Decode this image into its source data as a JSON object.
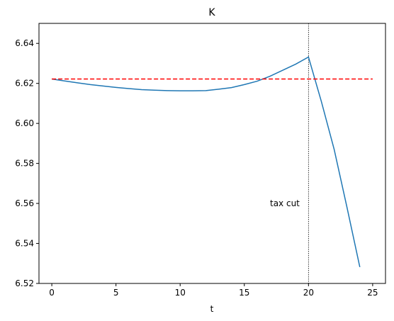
{
  "chart_data": {
    "type": "line",
    "title": "K",
    "xlabel": "t",
    "ylabel": "",
    "xlim": [
      -1,
      26
    ],
    "ylim": [
      6.52,
      6.65
    ],
    "xticks": [
      0,
      5,
      10,
      15,
      20,
      25
    ],
    "yticks": [
      6.52,
      6.54,
      6.56,
      6.58,
      6.6,
      6.62,
      6.64
    ],
    "ytick_labels": [
      "6.52",
      "6.54",
      "6.56",
      "6.58",
      "6.60",
      "6.62",
      "6.64"
    ],
    "grid": false,
    "series": [
      {
        "color": "#1f77b4",
        "style": "solid",
        "x": [
          0,
          1,
          2,
          3,
          4,
          5,
          6,
          7,
          8,
          9,
          10,
          11,
          12,
          13,
          14,
          15,
          16,
          17,
          18,
          19,
          20,
          21,
          22,
          23,
          24
        ],
        "y": [
          6.6222,
          6.6212,
          6.6203,
          6.6194,
          6.6187,
          6.618,
          6.6174,
          6.6169,
          6.6166,
          6.6164,
          6.6163,
          6.6163,
          6.6164,
          6.6171,
          6.6179,
          6.6194,
          6.6211,
          6.6236,
          6.6266,
          6.6296,
          6.6332,
          6.611,
          6.587,
          6.558,
          6.5282
        ]
      },
      {
        "color": "#ff0000",
        "style": "dashed",
        "x": [
          0,
          25
        ],
        "y": [
          6.6222,
          6.6222
        ]
      }
    ],
    "vlines": [
      {
        "x": 20,
        "color": "#000000",
        "style": "dotted"
      }
    ],
    "annotations": [
      {
        "text": "tax cut",
        "x": 17,
        "y": 6.56
      }
    ]
  }
}
